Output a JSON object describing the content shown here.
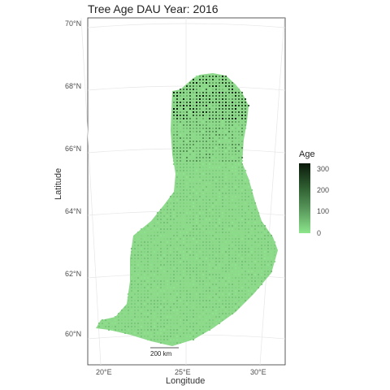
{
  "title": "Tree Age DAU Year: 2016",
  "axes": {
    "xlabel": "Longitude",
    "ylabel": "Latitude",
    "x_ticks": [
      "20°E",
      "25°E",
      "30°E"
    ],
    "y_ticks": [
      "70°N",
      "68°N",
      "66°N",
      "64°N",
      "62°N",
      "60°N"
    ]
  },
  "scalebar": {
    "label": "200 km"
  },
  "legend": {
    "title": "Age",
    "ticks": [
      "300",
      "200",
      "100",
      "0"
    ],
    "colors": {
      "low": "#8ce68b",
      "high": "#0b1a0b"
    }
  },
  "chart_data": {
    "type": "scatter",
    "title": "Tree Age DAU Year: 2016",
    "xlabel": "Longitude",
    "ylabel": "Latitude",
    "xlim": [
      19,
      32
    ],
    "ylim": [
      59.2,
      70.2
    ],
    "grid": true,
    "legend_placement": "right",
    "color_scale": {
      "name": "Age",
      "min": 0,
      "max": 320,
      "low": "#8ce68b",
      "high": "#0b1a0b"
    },
    "region": "Finland",
    "summary": "Dense grid of sample points covering Finland; southern and central points mostly young (light green), northern Lapland points include older stands (dark green to near black, up to ~300)."
  }
}
